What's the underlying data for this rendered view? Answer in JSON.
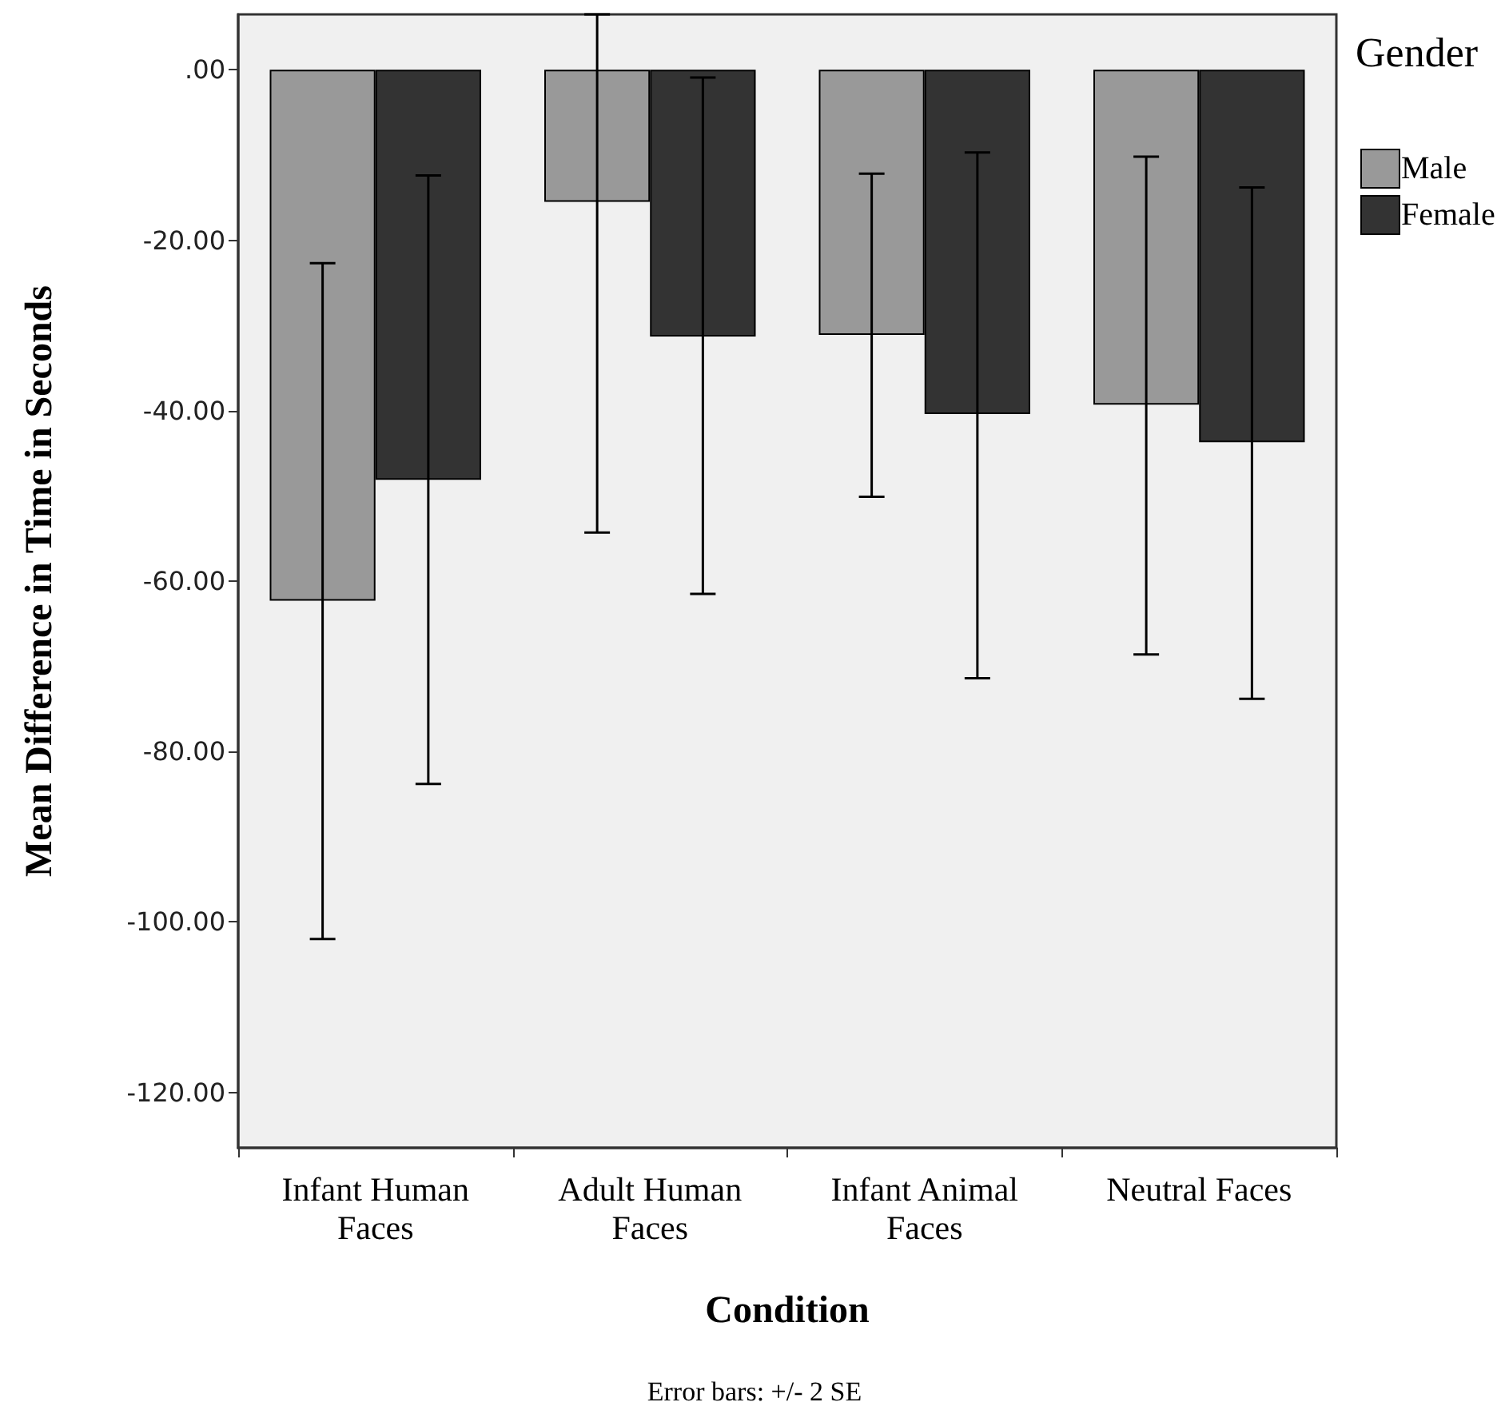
{
  "chart_data": {
    "type": "bar",
    "xlabel": "Condition",
    "ylabel": "Mean Difference in Time in Seconds",
    "legend_title": "Gender",
    "categories": [
      "Infant Human\nFaces",
      "Adult Human\nFaces",
      "Infant Animal\nFaces",
      "Neutral Faces"
    ],
    "series": [
      {
        "name": "Male",
        "color": "#999999",
        "values": [
          -62.3,
          -15.5,
          -31.1,
          -39.3
        ],
        "errors": [
          [
            -102.0,
            -22.7
          ],
          [
            -54.3,
            6.5
          ],
          [
            -50.1,
            -12.2
          ],
          [
            -68.6,
            -10.2
          ]
        ]
      },
      {
        "name": "Female",
        "color": "#333333",
        "values": [
          -48.1,
          -31.3,
          -40.4,
          -43.7
        ],
        "errors": [
          [
            -83.8,
            -12.4
          ],
          [
            -61.5,
            -0.9
          ],
          [
            -71.4,
            -9.7
          ],
          [
            -73.8,
            -13.8
          ]
        ]
      }
    ],
    "ylim": [
      -126.5,
      6.5
    ],
    "yticks": [
      {
        "value": 0,
        "label": ".00"
      },
      {
        "value": -20,
        "label": "-20.00"
      },
      {
        "value": -40,
        "label": "-40.00"
      },
      {
        "value": -60,
        "label": "-60.00"
      },
      {
        "value": -80,
        "label": "-80.00"
      },
      {
        "value": -100,
        "label": "-100.00"
      },
      {
        "value": -120,
        "label": "-120.00"
      }
    ],
    "grid": false,
    "legend": "top right",
    "annotations": [
      "Error bars: +/- 2 SE"
    ]
  }
}
